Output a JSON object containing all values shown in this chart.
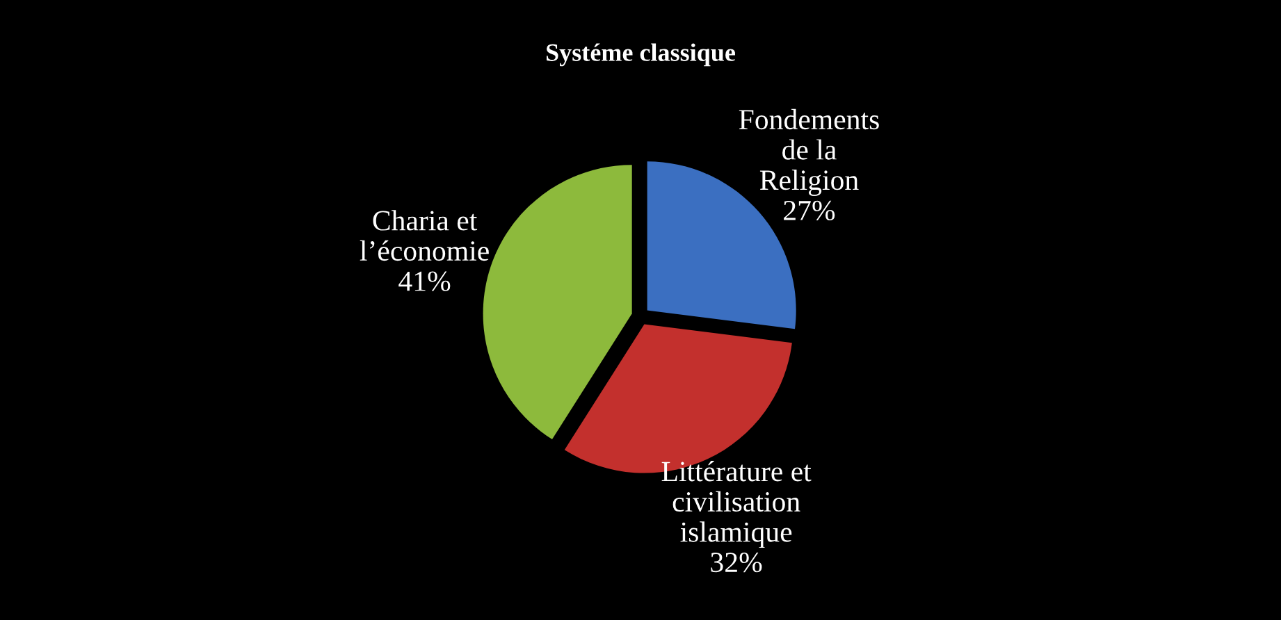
{
  "chart_data": {
    "type": "pie",
    "title": "Systéme classique",
    "categories": [
      "Fondements\nde la\nReligion",
      "Littérature et\ncivilisation\nislamique",
      "Charia et\nl’économie"
    ],
    "values": [
      27,
      32,
      41
    ],
    "colors": [
      "#3b6fc1",
      "#c3302d",
      "#8dba3c"
    ],
    "value_labels": [
      "27%",
      "32%",
      "41%"
    ]
  }
}
